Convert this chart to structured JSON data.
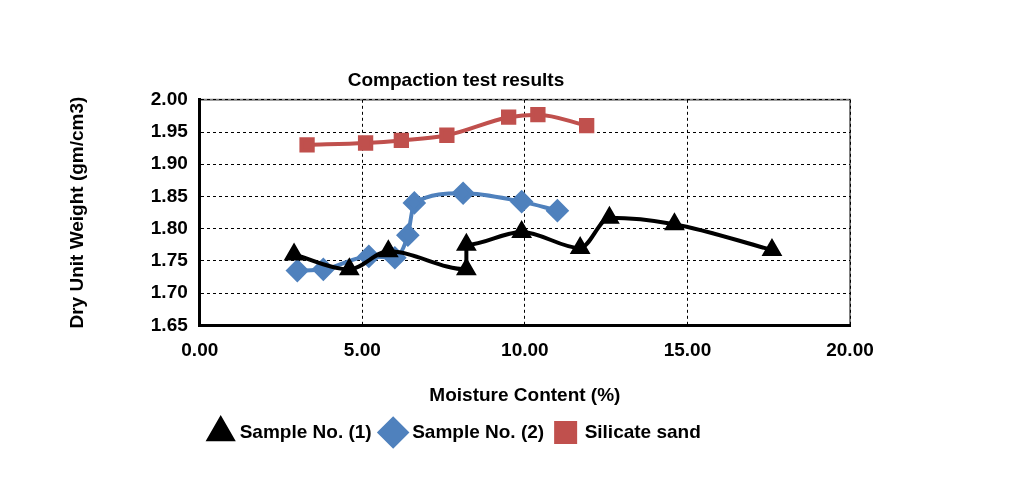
{
  "chart_data": {
    "type": "line",
    "title": "Compaction test results",
    "xlabel": "Moisture Content (%)",
    "ylabel": "Dry Unit Weight (gm/cm3)",
    "xlim": [
      0,
      20
    ],
    "xticks": [
      {
        "value": 0,
        "label": "0.00"
      },
      {
        "value": 5,
        "label": "5.00"
      },
      {
        "value": 10,
        "label": "10.00"
      },
      {
        "value": 15,
        "label": "15.00"
      },
      {
        "value": 20,
        "label": "20.00"
      }
    ],
    "ylim": [
      1.65,
      2.0
    ],
    "yticks": [
      {
        "value": 1.65,
        "label": "1.65"
      },
      {
        "value": 1.7,
        "label": "1.70"
      },
      {
        "value": 1.75,
        "label": "1.75"
      },
      {
        "value": 1.8,
        "label": "1.80"
      },
      {
        "value": 1.85,
        "label": "1.85"
      },
      {
        "value": 1.9,
        "label": "1.90"
      },
      {
        "value": 1.95,
        "label": "1.95"
      },
      {
        "value": 2.0,
        "label": "2.00"
      }
    ],
    "grid": true,
    "legend": "bottom",
    "series": [
      {
        "name": "Sample No. (1)",
        "color": "#000000",
        "marker": "triangle",
        "x": [
          2.9,
          4.6,
          5.8,
          8.2,
          8.2,
          9.9,
          11.7,
          12.6,
          14.6,
          17.6
        ],
        "values": [
          1.76,
          1.737,
          1.765,
          1.737,
          1.775,
          1.795,
          1.77,
          1.817,
          1.807,
          1.767
        ]
      },
      {
        "name": "Sample No. (2)",
        "color": "#4f81bd",
        "marker": "diamond",
        "x": [
          3.0,
          3.8,
          5.2,
          6.0,
          6.4,
          6.6,
          8.1,
          9.9,
          11.0
        ],
        "values": [
          1.735,
          1.737,
          1.757,
          1.755,
          1.79,
          1.84,
          1.855,
          1.842,
          1.828
        ]
      },
      {
        "name": "Silicate sand",
        "color": "#c0504d",
        "marker": "square",
        "x": [
          3.3,
          5.1,
          6.2,
          7.6,
          9.5,
          10.4,
          11.9
        ],
        "values": [
          1.93,
          1.933,
          1.937,
          1.945,
          1.973,
          1.977,
          1.96
        ]
      }
    ]
  }
}
